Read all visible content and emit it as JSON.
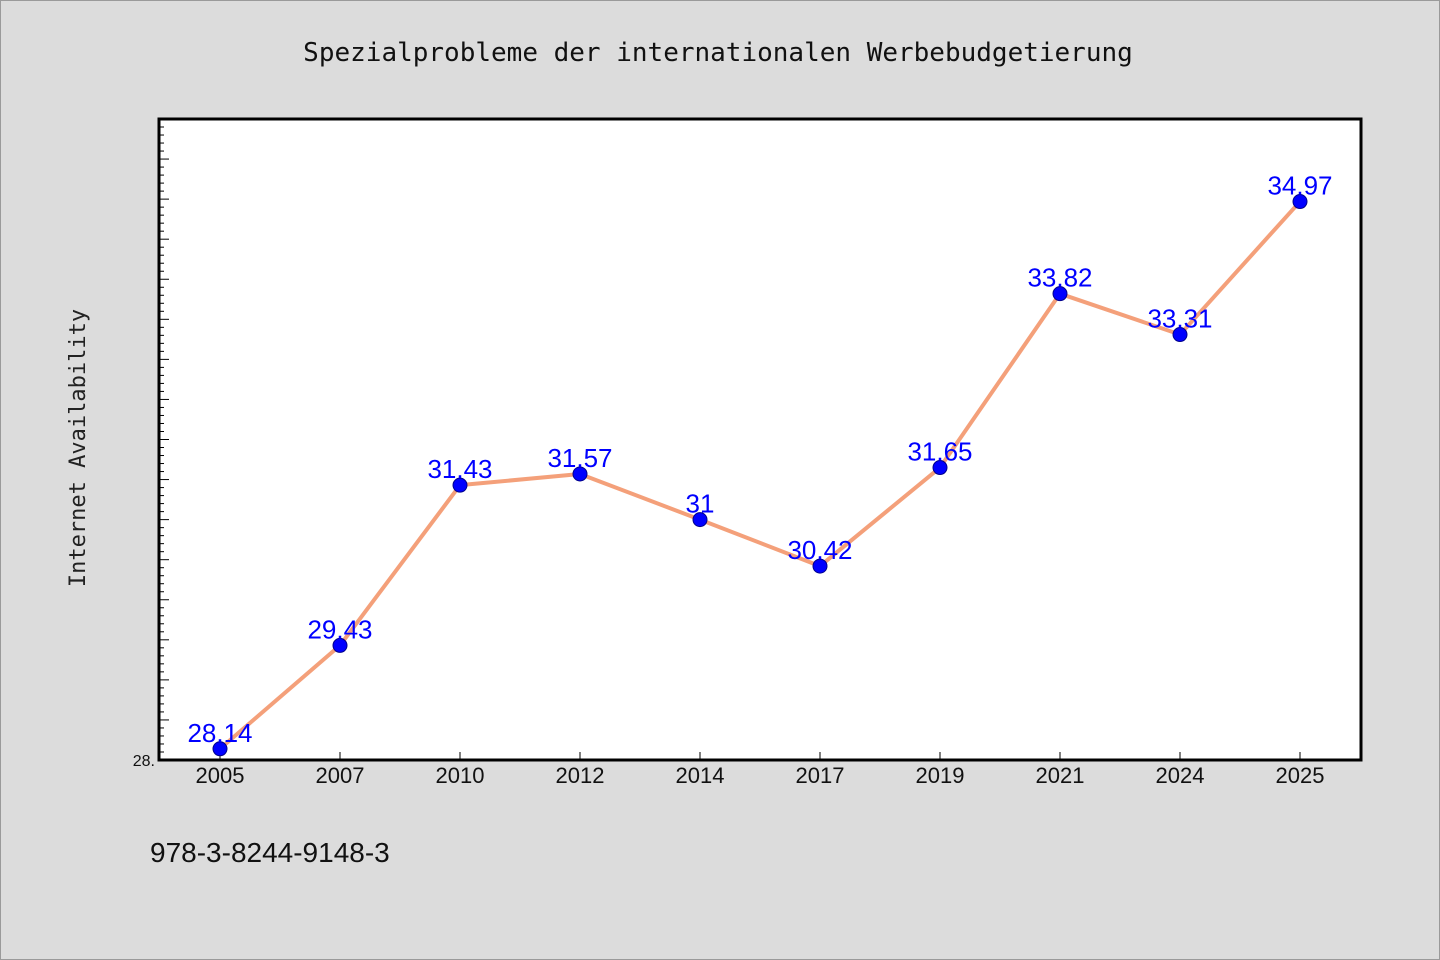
{
  "chart_data": {
    "type": "line",
    "title": "Spezialprobleme der internationalen Werbebudgetierung",
    "ylabel": "Internet Availability",
    "xlabel": "",
    "categories": [
      "2005",
      "2007",
      "2010",
      "2012",
      "2014",
      "2017",
      "2019",
      "2021",
      "2024",
      "2025"
    ],
    "values": [
      28.14,
      29.43,
      31.43,
      31.57,
      31,
      30.42,
      31.65,
      33.82,
      33.31,
      34.97
    ],
    "data_labels": [
      "28.14",
      "29.43",
      "31.43",
      "31.57",
      "31",
      "30.42",
      "31.65",
      "33.82",
      "33.31",
      "34.97"
    ],
    "ylim": [
      28,
      36
    ],
    "y_tick_labels": [
      "28."
    ],
    "grid": false,
    "colors": {
      "line": "#f4a07a",
      "marker": "#0000ff",
      "label": "#0000ff",
      "frame": "#000000",
      "plot_bg": "#ffffff",
      "figure_bg": "#dcdcdc"
    }
  },
  "footer": {
    "isbn": "978-3-8244-9148-3"
  }
}
